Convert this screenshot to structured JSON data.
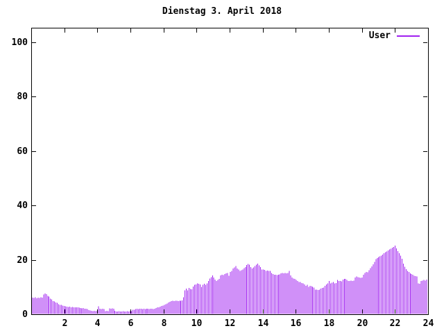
{
  "chart_data": {
    "type": "bar",
    "style": "impulses",
    "title": "Dienstag 3. April 2018",
    "xlabel": "",
    "ylabel": "",
    "x_unit": "hour-of-day",
    "sample_interval_minutes": 5,
    "xlim": [
      0,
      24
    ],
    "ylim": [
      0,
      105
    ],
    "xticks": [
      2,
      4,
      6,
      8,
      10,
      12,
      14,
      16,
      18,
      20,
      22,
      24
    ],
    "yticks": [
      0,
      20,
      40,
      60,
      80,
      100
    ],
    "grid": false,
    "legend_position": "top-right-inside",
    "axis_color": "#000000",
    "background_color": "#ffffff",
    "series": [
      {
        "name": "User",
        "color": "#a020f0",
        "values": [
          6.1,
          6.0,
          6.2,
          5.9,
          6.1,
          6.0,
          6.2,
          6.1,
          7.3,
          7.6,
          7.4,
          6.7,
          6.5,
          5.8,
          5.5,
          4.9,
          4.7,
          4.4,
          4.2,
          3.7,
          3.5,
          3.4,
          3.2,
          3.0,
          2.9,
          2.8,
          2.7,
          2.8,
          2.6,
          2.7,
          2.6,
          2.5,
          2.6,
          2.5,
          2.4,
          2.3,
          2.2,
          2.3,
          2.1,
          2.0,
          1.9,
          1.5,
          1.4,
          1.3,
          1.2,
          1.3,
          1.2,
          1.3,
          2.9,
          2.0,
          1.9,
          2.0,
          1.9,
          1.2,
          1.3,
          1.2,
          2.2,
          2.1,
          2.2,
          2.1,
          1.3,
          1.0,
          1.0,
          1.1,
          1.0,
          1.0,
          1.1,
          1.0,
          1.0,
          1.1,
          1.0,
          1.2,
          1.1,
          1.6,
          1.7,
          1.9,
          2.0,
          1.9,
          2.0,
          2.0,
          1.9,
          2.0,
          1.9,
          2.0,
          2.0,
          1.9,
          2.0,
          2.0,
          1.9,
          2.0,
          2.3,
          2.5,
          2.6,
          2.8,
          3.0,
          3.2,
          3.4,
          3.7,
          4.0,
          4.3,
          4.6,
          4.8,
          5.0,
          4.9,
          5.0,
          5.0,
          4.9,
          5.0,
          5.0,
          5.1,
          6.3,
          8.8,
          9.4,
          8.8,
          9.7,
          9.3,
          9.2,
          10.2,
          10.9,
          11.0,
          11.4,
          11.2,
          11.0,
          10.1,
          10.9,
          11.2,
          10.9,
          11.3,
          12.2,
          13.1,
          13.7,
          14.3,
          13.5,
          12.8,
          12.2,
          12.6,
          13.0,
          14.3,
          14.5,
          14.4,
          14.8,
          15.0,
          15.2,
          14.2,
          15.6,
          16.0,
          16.9,
          17.2,
          17.7,
          16.9,
          16.4,
          16.0,
          16.2,
          16.4,
          17.0,
          17.3,
          18.1,
          18.5,
          18.3,
          17.3,
          16.9,
          17.2,
          17.7,
          18.2,
          18.6,
          18.0,
          17.4,
          16.4,
          16.4,
          16.3,
          16.0,
          16.1,
          15.9,
          16.0,
          15.2,
          14.8,
          14.5,
          14.6,
          14.4,
          14.5,
          14.7,
          15.0,
          15.2,
          15.1,
          15.2,
          15.0,
          15.2,
          16.0,
          14.3,
          13.5,
          13.2,
          13.0,
          12.6,
          12.2,
          11.8,
          11.9,
          11.5,
          11.4,
          11.0,
          10.5,
          10.9,
          10.1,
          10.5,
          10.3,
          10.1,
          9.8,
          9.0,
          9.1,
          8.9,
          9.0,
          9.5,
          9.7,
          9.8,
          10.5,
          11.0,
          11.4,
          12.2,
          11.4,
          11.6,
          11.8,
          11.4,
          11.5,
          12.6,
          12.2,
          12.3,
          12.1,
          12.8,
          13.0,
          13.0,
          12.6,
          12.2,
          12.3,
          12.4,
          12.2,
          12.4,
          13.5,
          13.9,
          13.6,
          13.5,
          13.4,
          13.5,
          14.5,
          15.2,
          15.6,
          15.4,
          16.2,
          17.0,
          17.6,
          18.4,
          19.3,
          20.3,
          20.6,
          21.0,
          21.3,
          21.6,
          22.0,
          22.4,
          22.8,
          23.1,
          23.5,
          23.8,
          24.1,
          24.5,
          24.8,
          25.3,
          24.2,
          23.2,
          22.4,
          21.5,
          20.4,
          18.6,
          17.5,
          16.6,
          16.0,
          15.5,
          15.1,
          14.8,
          14.5,
          14.2,
          14.0,
          13.9,
          11.4,
          11.2,
          12.3,
          12.4,
          12.6,
          12.4,
          12.7
        ]
      }
    ]
  }
}
